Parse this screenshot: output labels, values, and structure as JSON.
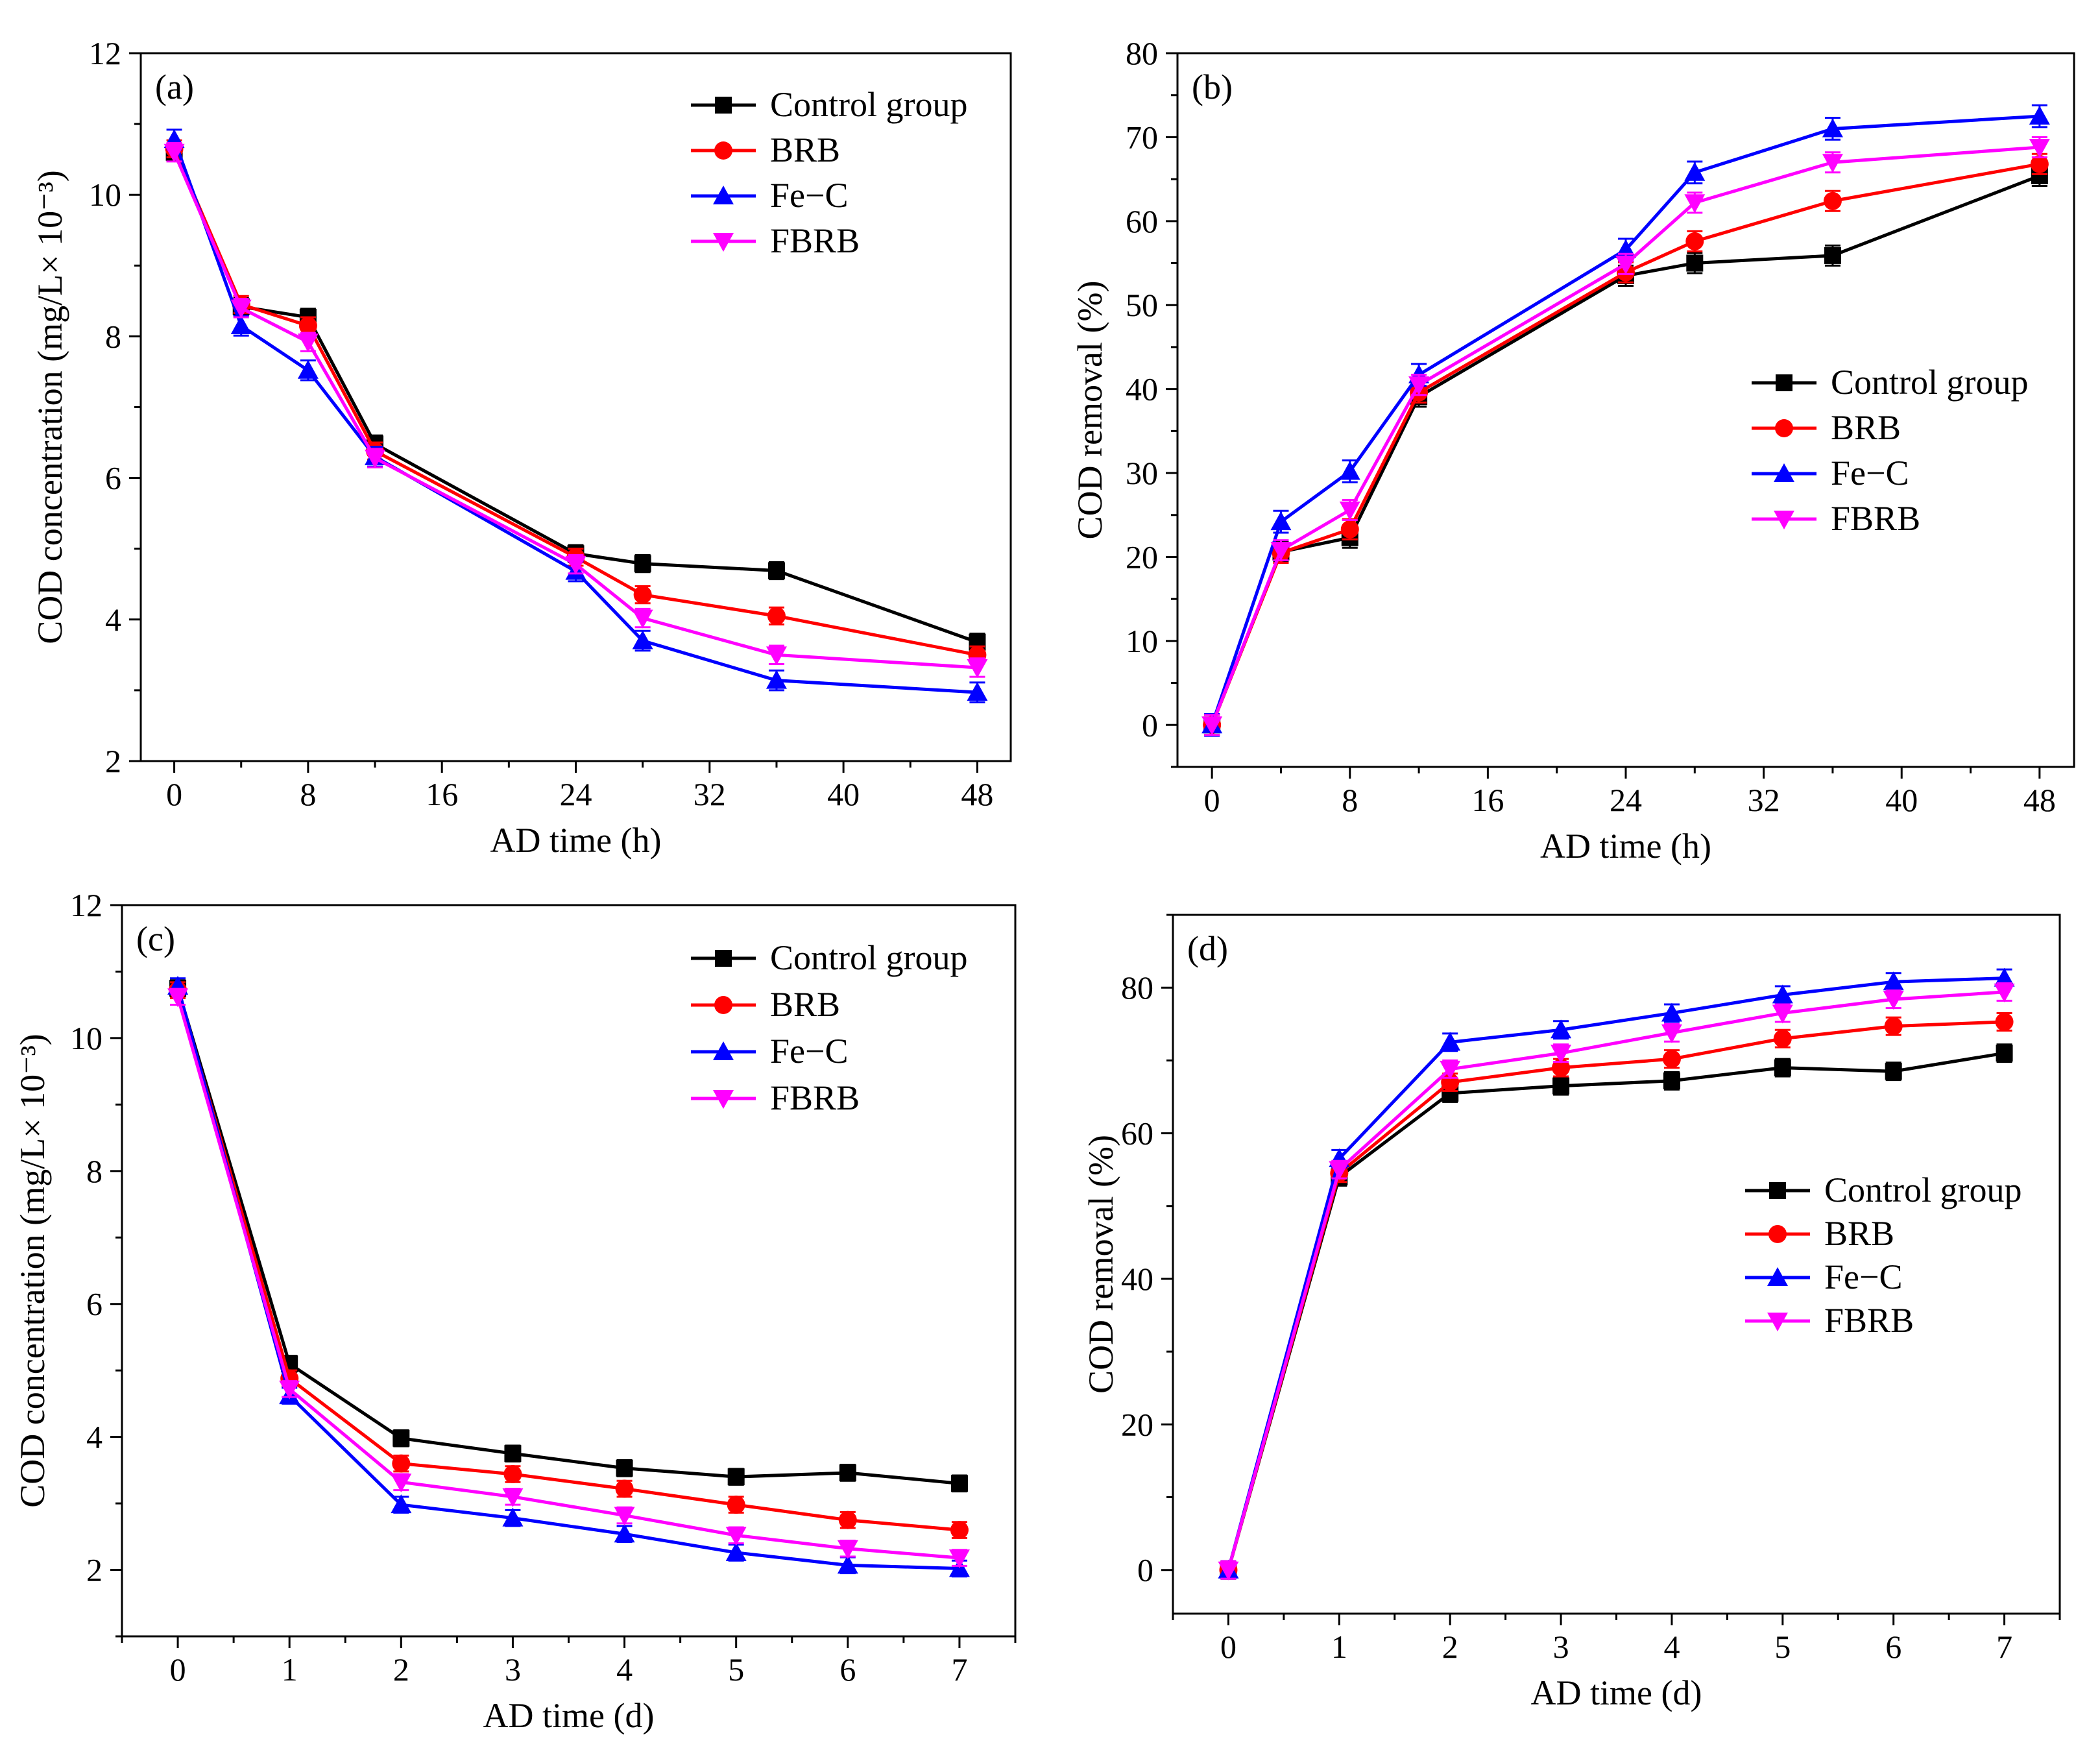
{
  "colors": {
    "Control group": "#000000",
    "BRB": "#ff0000",
    "Fe−C": "#0000ff",
    "FBRB": "#ff00ff"
  },
  "markers": {
    "Control group": "square",
    "BRB": "circle",
    "Fe−C": "triangle-up",
    "FBRB": "triangle-down"
  },
  "chart_data": [
    {
      "panel": "(a)",
      "type": "line",
      "xlabel": "AD time (h)",
      "ylabel": "COD concentration  (mg/L× 10⁻³)",
      "xlim": [
        -2,
        50
      ],
      "ylim": [
        2,
        12
      ],
      "xticks": [
        0,
        8,
        16,
        24,
        32,
        40,
        48
      ],
      "yticks": [
        2,
        4,
        6,
        8,
        10,
        12
      ],
      "legend": "top-right",
      "x": [
        0,
        4,
        8,
        12,
        24,
        28,
        36,
        48
      ],
      "series": [
        {
          "name": "Control group",
          "values": [
            10.6,
            8.42,
            8.27,
            6.48,
            4.93,
            4.79,
            4.69,
            3.68
          ],
          "errors": [
            0.12,
            0.12,
            0.12,
            0.12,
            0.12,
            0.12,
            0.12,
            0.12
          ]
        },
        {
          "name": "BRB",
          "values": [
            10.65,
            8.45,
            8.15,
            6.38,
            4.88,
            4.35,
            4.05,
            3.5
          ],
          "errors": [
            0.12,
            0.12,
            0.12,
            0.12,
            0.12,
            0.12,
            0.12,
            0.12
          ]
        },
        {
          "name": "Fe−C",
          "values": [
            10.78,
            8.15,
            7.52,
            6.3,
            4.68,
            3.7,
            3.14,
            2.97
          ],
          "errors": [
            0.14,
            0.14,
            0.14,
            0.14,
            0.14,
            0.14,
            0.14,
            0.14
          ]
        },
        {
          "name": "FBRB",
          "values": [
            10.6,
            8.4,
            7.92,
            6.28,
            4.78,
            4.02,
            3.5,
            3.32
          ],
          "errors": [
            0.13,
            0.13,
            0.13,
            0.13,
            0.13,
            0.13,
            0.13,
            0.13
          ]
        }
      ]
    },
    {
      "panel": "(b)",
      "type": "line",
      "xlabel": "AD time (h)",
      "ylabel": "COD removal (%)",
      "xlim": [
        -2,
        50
      ],
      "ylim": [
        -5,
        80
      ],
      "xticks": [
        0,
        8,
        16,
        24,
        32,
        40,
        48
      ],
      "yticks": [
        0,
        10,
        20,
        30,
        40,
        50,
        60,
        70,
        80
      ],
      "legend": "center-right",
      "x": [
        0,
        4,
        8,
        12,
        24,
        28,
        36,
        48
      ],
      "series": [
        {
          "name": "Control group",
          "values": [
            0,
            20.6,
            22.3,
            39.1,
            53.5,
            55,
            55.9,
            65.4
          ],
          "errors": [
            1.2,
            1.2,
            1.2,
            1.2,
            1.2,
            1.2,
            1.2,
            1.2
          ]
        },
        {
          "name": "BRB",
          "values": [
            0,
            20.5,
            23.3,
            39.6,
            53.9,
            57.6,
            62.4,
            66.8
          ],
          "errors": [
            1.2,
            1.2,
            1.2,
            1.2,
            1.2,
            1.2,
            1.2,
            1.2
          ]
        },
        {
          "name": "Fe−C",
          "values": [
            0,
            24.2,
            30.2,
            41.7,
            56.6,
            65.8,
            71,
            72.5
          ],
          "errors": [
            1.3,
            1.3,
            1.3,
            1.3,
            1.3,
            1.3,
            1.3,
            1.3
          ]
        },
        {
          "name": "FBRB",
          "values": [
            0,
            20.8,
            25.6,
            40.5,
            54.9,
            62.2,
            67,
            68.8
          ],
          "errors": [
            1.2,
            1.2,
            1.2,
            1.2,
            1.2,
            1.2,
            1.2,
            1.2
          ]
        }
      ]
    },
    {
      "panel": "(c)",
      "type": "line",
      "xlabel": "AD time (d)",
      "ylabel": "COD concentration  (mg/L× 10⁻³)",
      "xlim": [
        -0.5,
        7.5
      ],
      "ylim": [
        1,
        12
      ],
      "xticks": [
        0,
        1,
        2,
        3,
        4,
        5,
        6,
        7
      ],
      "yticks": [
        2,
        4,
        6,
        8,
        10,
        12
      ],
      "legend": "top-right",
      "x": [
        0,
        1,
        2,
        3,
        4,
        5,
        6,
        7
      ],
      "series": [
        {
          "name": "Control group",
          "values": [
            10.75,
            5.1,
            3.98,
            3.75,
            3.53,
            3.4,
            3.46,
            3.3
          ],
          "errors": [
            0.12,
            0.12,
            0.12,
            0.12,
            0.12,
            0.12,
            0.12,
            0.12
          ]
        },
        {
          "name": "BRB",
          "values": [
            10.72,
            4.88,
            3.6,
            3.44,
            3.22,
            2.98,
            2.75,
            2.6
          ],
          "errors": [
            0.12,
            0.12,
            0.12,
            0.12,
            0.12,
            0.12,
            0.12,
            0.12
          ]
        },
        {
          "name": "Fe−C",
          "values": [
            10.78,
            4.62,
            2.98,
            2.78,
            2.54,
            2.26,
            2.07,
            2.02
          ],
          "errors": [
            0.12,
            0.12,
            0.12,
            0.12,
            0.12,
            0.12,
            0.12,
            0.12
          ]
        },
        {
          "name": "FBRB",
          "values": [
            10.62,
            4.72,
            3.32,
            3.1,
            2.82,
            2.52,
            2.32,
            2.18
          ],
          "errors": [
            0.12,
            0.12,
            0.12,
            0.12,
            0.12,
            0.12,
            0.12,
            0.12
          ]
        }
      ]
    },
    {
      "panel": "(d)",
      "type": "line",
      "xlabel": "AD time (d)",
      "ylabel": "COD removal (%)",
      "xlim": [
        -0.5,
        7.5
      ],
      "ylim": [
        -6,
        90
      ],
      "xticks": [
        0,
        1,
        2,
        3,
        4,
        5,
        6,
        7
      ],
      "yticks": [
        0,
        20,
        40,
        60,
        80
      ],
      "legend": "center-right",
      "x": [
        0,
        1,
        2,
        3,
        4,
        5,
        6,
        7
      ],
      "series": [
        {
          "name": "Control group",
          "values": [
            0,
            54,
            65.5,
            66.5,
            67.2,
            69,
            68.5,
            71
          ],
          "errors": [
            1.2,
            1.2,
            1.2,
            1.2,
            1.2,
            1.2,
            1.2,
            1.2
          ]
        },
        {
          "name": "BRB",
          "values": [
            0,
            54.5,
            67,
            69,
            70.2,
            73,
            74.7,
            75.3
          ],
          "errors": [
            1.2,
            1.2,
            1.2,
            1.2,
            1.2,
            1.2,
            1.2,
            1.2
          ]
        },
        {
          "name": "Fe−C",
          "values": [
            0,
            56.5,
            72.5,
            74.2,
            76.5,
            79,
            80.8,
            81.3
          ],
          "errors": [
            1.2,
            1.2,
            1.2,
            1.2,
            1.2,
            1.2,
            1.2,
            1.2
          ]
        },
        {
          "name": "FBRB",
          "values": [
            0,
            55,
            68.8,
            71,
            73.8,
            76.5,
            78.4,
            79.4
          ],
          "errors": [
            1.2,
            1.2,
            1.2,
            1.2,
            1.2,
            1.2,
            1.2,
            1.2
          ]
        }
      ]
    }
  ]
}
